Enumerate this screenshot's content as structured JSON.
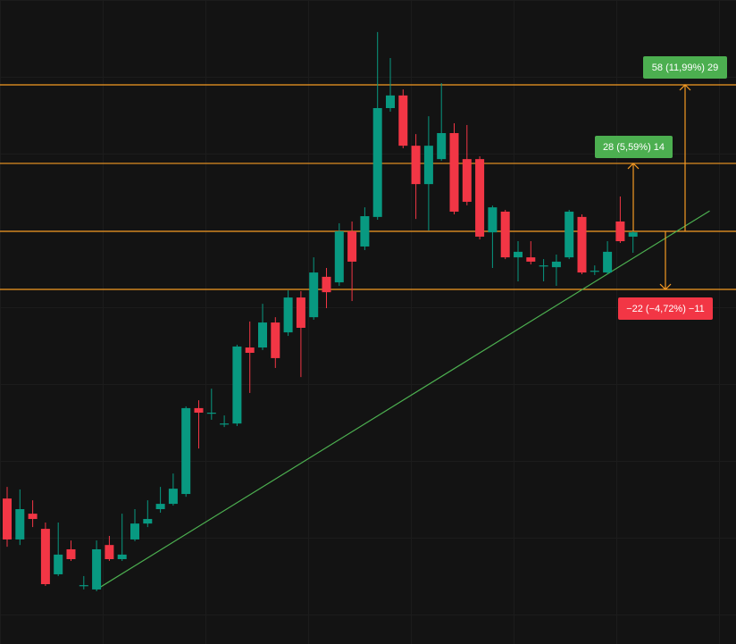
{
  "chart_data": {
    "type": "candlestick",
    "ylim": [
      321,
      576
    ],
    "up_color": "#089981",
    "down_color": "#f23645",
    "open": [
      378.6,
      362.4,
      372.6,
      366.6,
      348.6,
      358.5,
      344.3,
      342.6,
      360.2,
      354.6,
      362.4,
      368.7,
      374.4,
      376.5,
      380.4,
      414.4,
      412.6,
      408.3,
      408.3,
      438.4,
      438.4,
      448.3,
      444.4,
      458.2,
      450.4,
      466.4,
      464.2,
      484.4,
      478.4,
      490.1,
      533.2,
      538.2,
      518.3,
      503.1,
      513.0,
      523.3,
      513.0,
      513.0,
      484.0,
      492.2,
      474.1,
      474.1,
      470.9,
      470.2,
      474.1,
      490.1,
      468.8,
      468.1,
      488.3,
      482.3
    ],
    "high": [
      383.2,
      382.2,
      377.9,
      369.1,
      369.1,
      362.0,
      347.9,
      362.0,
      363.8,
      372.6,
      374.4,
      377.9,
      383.2,
      388.5,
      415.1,
      417.5,
      422.1,
      411.5,
      439.5,
      448.7,
      455.7,
      450.4,
      461.0,
      460.7,
      474.1,
      469.9,
      487.6,
      488.3,
      493.9,
      563.3,
      553.0,
      540.6,
      522.9,
      530.0,
      543.1,
      527.2,
      526.5,
      514.1,
      494.6,
      492.9,
      480.5,
      480.5,
      473.4,
      475.2,
      492.9,
      491.1,
      470.9,
      480.5,
      498.2,
      484.7
    ],
    "low": [
      359.5,
      360.2,
      367.3,
      344.0,
      347.9,
      353.9,
      342.6,
      341.9,
      353.9,
      353.9,
      361.7,
      367.3,
      373.0,
      375.8,
      379.3,
      398.4,
      409.8,
      406.9,
      407.3,
      420.4,
      437.4,
      430.3,
      443.0,
      426.7,
      449.4,
      454.0,
      462.8,
      456.8,
      477.0,
      489.0,
      531.8,
      517.3,
      489.3,
      484.7,
      512.3,
      491.1,
      494.7,
      481.2,
      469.9,
      473.4,
      464.6,
      471.3,
      464.6,
      462.8,
      473.4,
      467.4,
      467.1,
      467.4,
      479.8,
      475.9
    ],
    "close": [
      362.4,
      374.4,
      370.5,
      344.7,
      356.4,
      354.6,
      344.3,
      358.5,
      354.6,
      356.4,
      368.7,
      370.5,
      376.5,
      382.5,
      414.4,
      412.6,
      412.6,
      408.3,
      438.8,
      436.3,
      448.3,
      434.2,
      458.2,
      446.2,
      468.1,
      460.3,
      484.4,
      472.4,
      490.4,
      533.2,
      538.2,
      518.3,
      503.1,
      518.3,
      523.3,
      492.2,
      496.1,
      482.3,
      493.9,
      474.1,
      476.3,
      472.4,
      470.9,
      472.4,
      492.2,
      468.1,
      468.8,
      476.3,
      480.5,
      484.0
    ],
    "levels": [
      542.4,
      511.3,
      484.4,
      461.4
    ],
    "level_color": "#f59a23",
    "trendline": {
      "x": [
        7,
        55
      ],
      "y": [
        342.6,
        492.5
      ],
      "color": "#4caf50"
    },
    "annotations": [
      {
        "text": "58 (11,99%) 29",
        "color": "#4caf50"
      },
      {
        "text": "28 (5,59%) 14",
        "color": "#4caf50"
      },
      {
        "text": "−22 (−4,72%) −11",
        "color": "#f23645"
      }
    ]
  }
}
